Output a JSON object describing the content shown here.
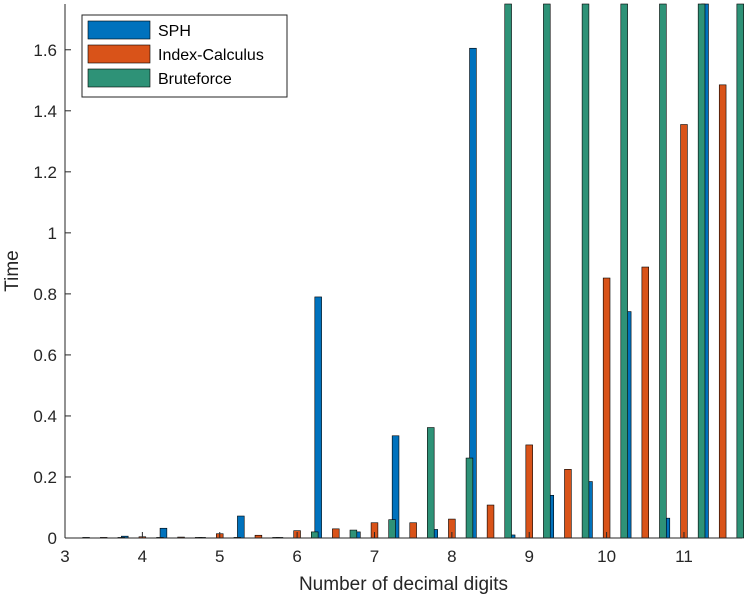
{
  "chart_data": {
    "type": "bar",
    "xlabel": "Number of decimal digits",
    "ylabel": "Time",
    "xlim": [
      3,
      11.75
    ],
    "ylim": [
      0,
      1.75
    ],
    "xticks": [
      "3",
      "4",
      "5",
      "6",
      "7",
      "8",
      "9",
      "10",
      "11"
    ],
    "yticks": [
      "0",
      "0.2",
      "0.4",
      "0.6",
      "0.8",
      "1",
      "1.2",
      "1.4",
      "1.6"
    ],
    "legend_position": "top-left",
    "grid": false,
    "x": [
      3.5,
      4,
      4.5,
      5,
      5.5,
      6,
      6.5,
      7,
      7.5,
      8,
      8.5,
      9,
      9.5,
      10,
      10.5,
      11,
      11.5
    ],
    "series": [
      {
        "name": "SPH",
        "color": "#0072BD",
        "values": [
          0.002,
          0.006,
          0.032,
          0.001,
          0.072,
          0.001,
          0.79,
          0.02,
          0.335,
          0.028,
          1.605,
          0.01,
          0.14,
          0.185,
          0.742,
          0.065,
          1.75
        ]
      },
      {
        "name": "Index-Calculus",
        "color": "#D95319",
        "values": [
          0.002,
          0.004,
          0.003,
          0.014,
          0.009,
          0.024,
          0.03,
          0.05,
          0.05,
          0.062,
          0.108,
          0.305,
          0.225,
          0.852,
          0.888,
          1.355,
          1.485
        ]
      },
      {
        "name": "Bruteforce",
        "color": "#2E9277",
        "values": [
          0.001,
          0.001,
          0.002,
          0.002,
          0.001,
          0.02,
          0.026,
          0.06,
          0.362,
          0.262,
          1.75,
          1.75,
          1.75,
          1.75,
          1.75,
          1.75,
          1.75
        ]
      }
    ]
  }
}
